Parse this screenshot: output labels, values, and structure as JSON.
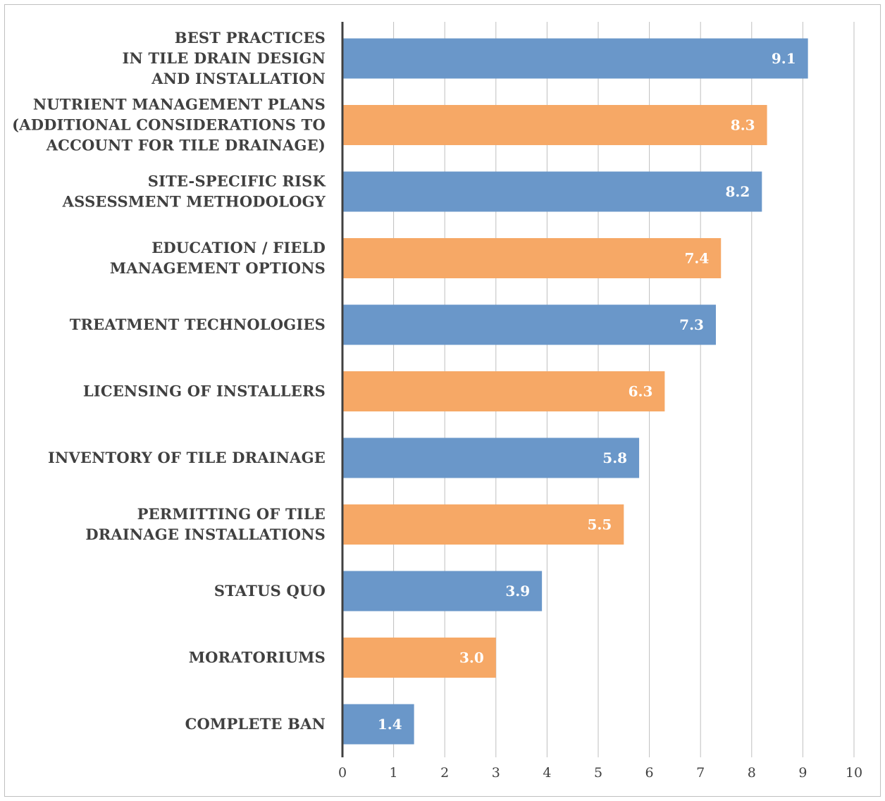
{
  "chart_data": {
    "type": "bar",
    "orientation": "horizontal",
    "categories": [
      [
        "BEST PRACTICES",
        "IN TILE DRAIN DESIGN",
        "AND INSTALLATION"
      ],
      [
        "NUTRIENT MANAGEMENT PLANS",
        "(ADDITIONAL CONSIDERATIONS TO",
        "ACCOUNT FOR TILE DRAINAGE)"
      ],
      [
        "SITE-SPECIFIC RISK",
        "ASSESSMENT METHODOLOGY"
      ],
      [
        "EDUCATION / FIELD",
        "MANAGEMENT OPTIONS"
      ],
      [
        "TREATMENT TECHNOLOGIES"
      ],
      [
        "LICENSING OF INSTALLERS"
      ],
      [
        "INVENTORY OF TILE DRAINAGE"
      ],
      [
        "PERMITTING OF TILE",
        "DRAINAGE INSTALLATIONS"
      ],
      [
        "STATUS QUO"
      ],
      [
        "MORATORIUMS"
      ],
      [
        "COMPLETE BAN"
      ]
    ],
    "values": [
      9.1,
      8.3,
      8.2,
      7.4,
      7.3,
      6.3,
      5.8,
      5.5,
      3.9,
      3.0,
      1.4
    ],
    "data_labels": [
      "9.1",
      "8.3",
      "8.2",
      "7.4",
      "7.3",
      "6.3",
      "5.8",
      "5.5",
      "3.9",
      "3.0",
      "1.4"
    ],
    "bar_colors": [
      "#6a97c9",
      "#f6a866",
      "#6a97c9",
      "#f6a866",
      "#6a97c9",
      "#f6a866",
      "#6a97c9",
      "#f6a866",
      "#6a97c9",
      "#f6a866",
      "#6a97c9"
    ],
    "xlim": [
      0,
      10
    ],
    "x_ticks": [
      "0",
      "1",
      "2",
      "3",
      "4",
      "5",
      "6",
      "7",
      "8",
      "9",
      "10"
    ],
    "grid": true,
    "legend": false
  }
}
